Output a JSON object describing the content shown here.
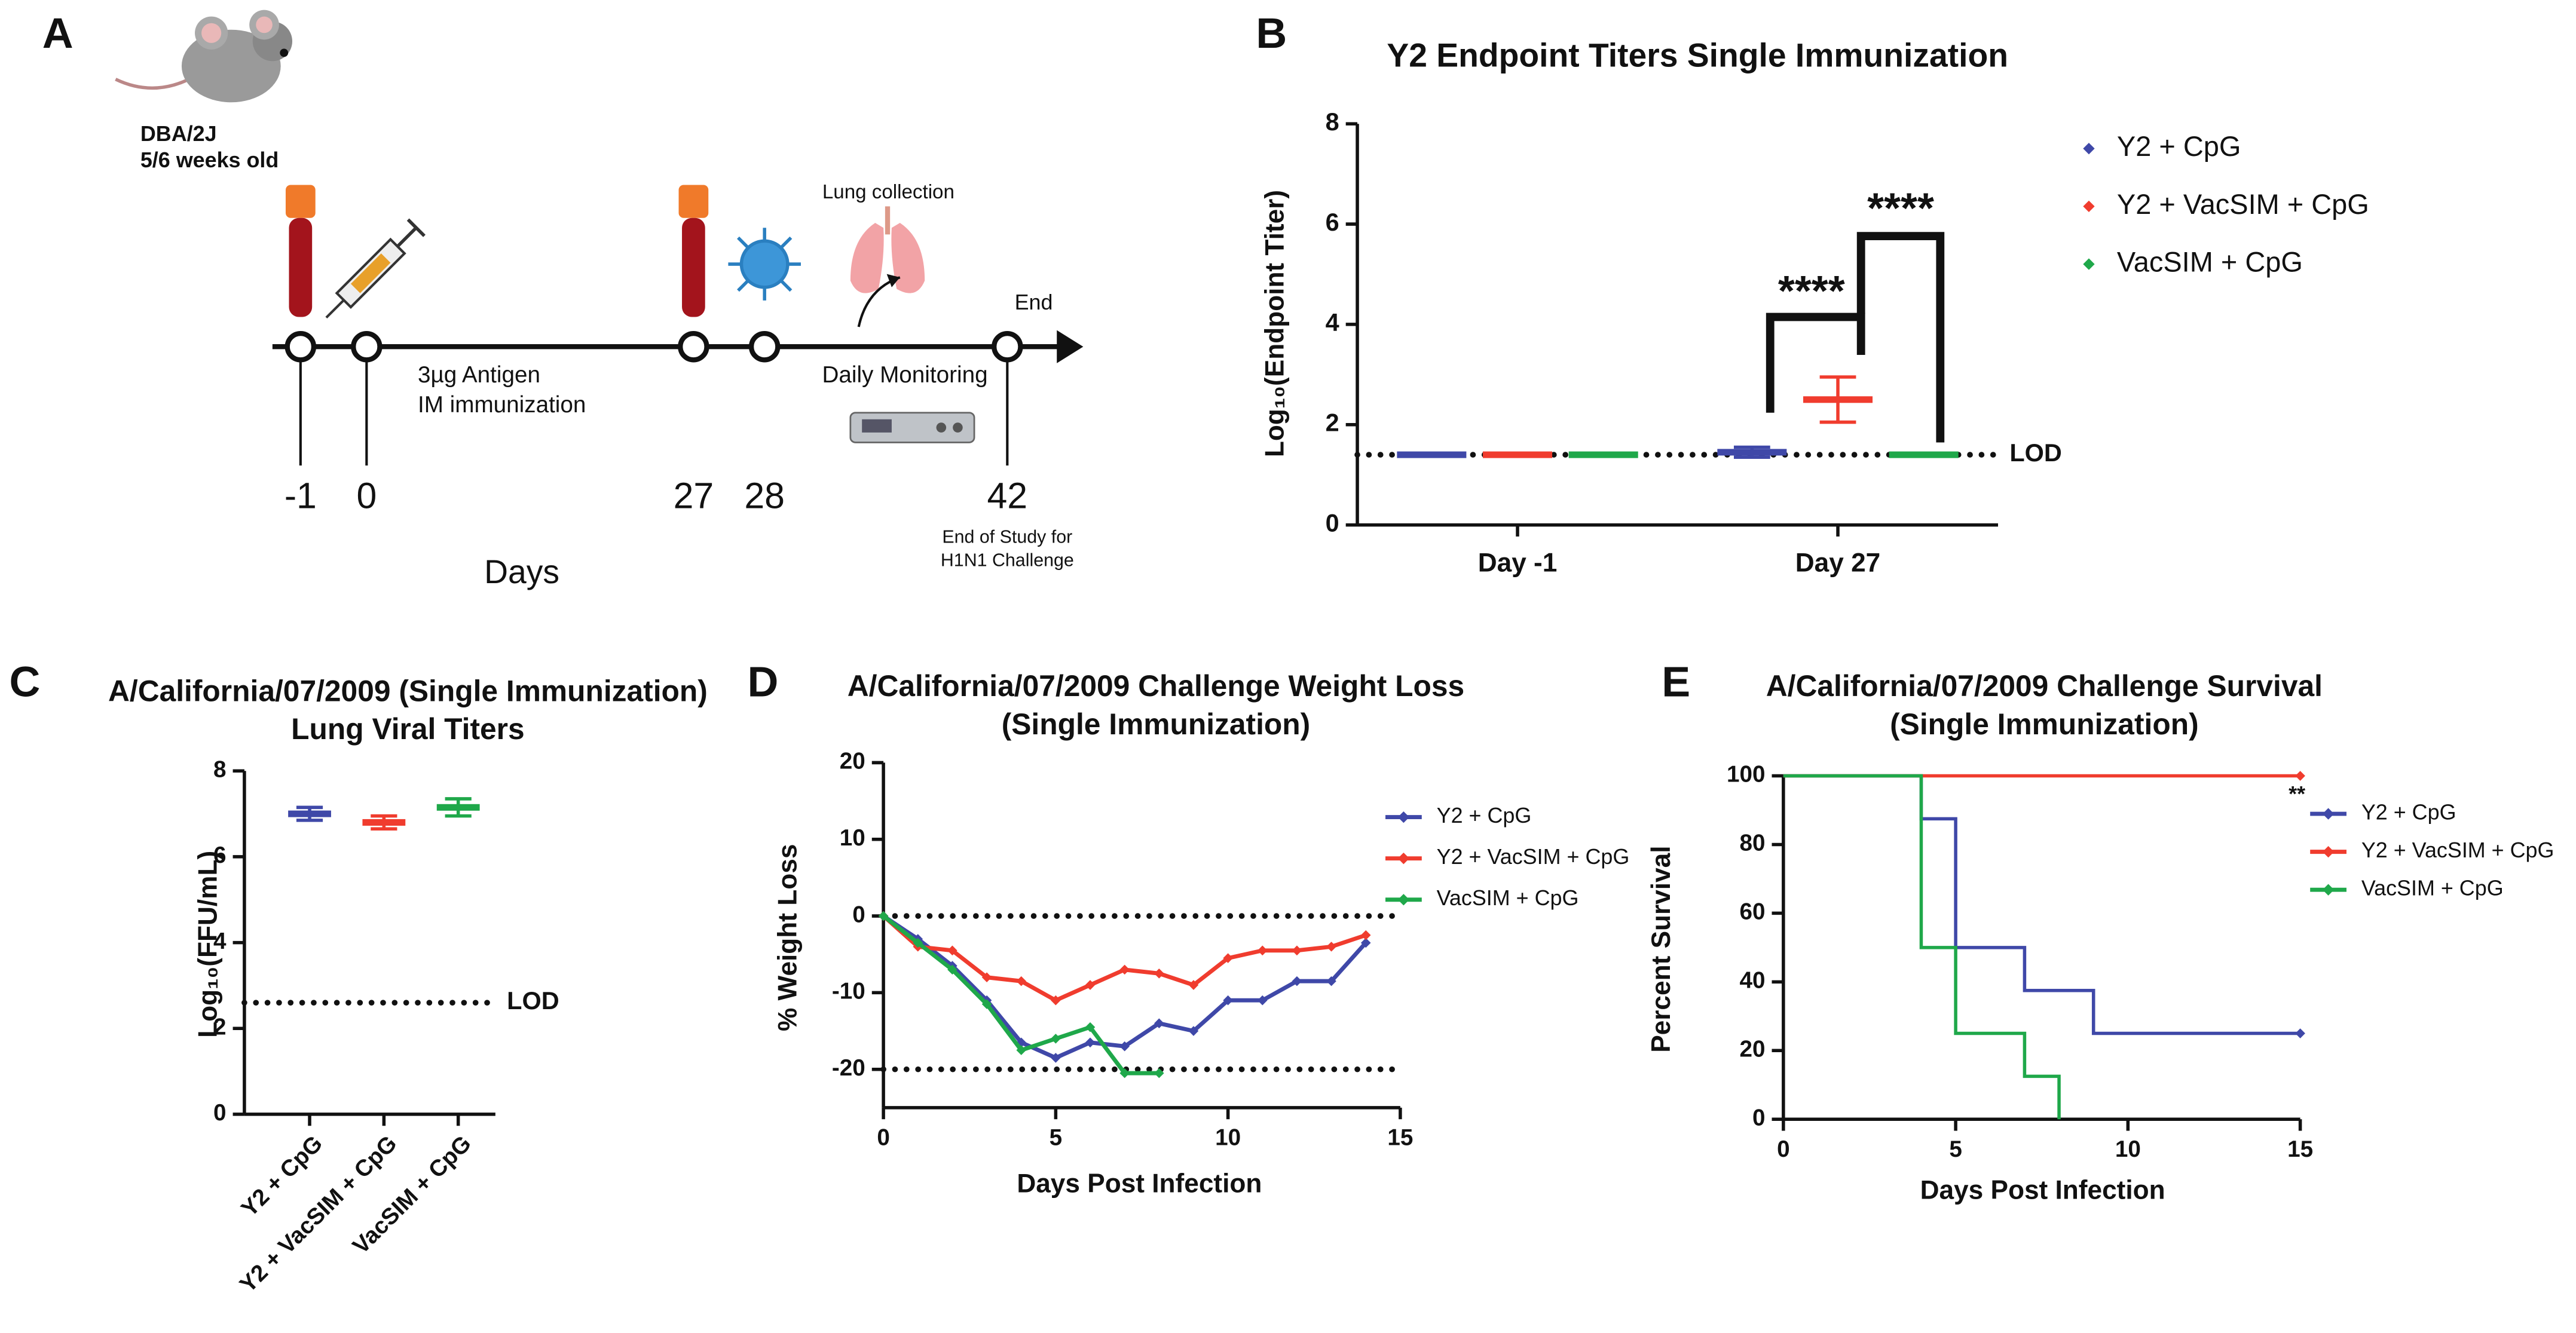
{
  "diagram": {
    "panel": "A",
    "mouse_label": [
      "DBA/2J",
      "5/6 weeks old"
    ],
    "days": [
      "-1",
      "0",
      "27",
      "28",
      "42"
    ],
    "days_label": "Days",
    "immunization": [
      "3µg Antigen",
      "IM immunization"
    ],
    "lung_collection": "Lung collection",
    "end": "End",
    "monitoring": "Daily Monitoring",
    "end_of_study": [
      "End of Study for",
      "H1N1 Challenge"
    ]
  },
  "chart_data": [
    {
      "type": "dot",
      "panel": "B",
      "title": "Y2 Endpoint Titers Single Immunization",
      "y_label": "Log₁₀(Endpoint Titer)",
      "categories": [
        "Day -1",
        "Day 27"
      ],
      "series": [
        {
          "name": "Y2 + CpG",
          "color": "#3f48a8",
          "values": [
            1.4,
            1.45
          ],
          "errors": [
            0,
            0.1
          ]
        },
        {
          "name": "Y2 + VacSIM + CpG",
          "color": "#f03c2e",
          "values": [
            1.4,
            2.5
          ],
          "errors": [
            0,
            0.45
          ]
        },
        {
          "name": "VacSIM + CpG",
          "color": "#1fa84a",
          "values": [
            1.4,
            1.4
          ],
          "errors": [
            0,
            0
          ]
        }
      ],
      "ylim": [
        0,
        8
      ],
      "yticks": [
        0,
        2,
        4,
        6,
        8
      ],
      "lod": 1.4,
      "lod_label": "LOD",
      "annotations": [
        "****",
        "****"
      ]
    },
    {
      "type": "dot",
      "panel": "C",
      "title": [
        "A/California/07/2009 (Single Immunization)",
        "Lung Viral Titers"
      ],
      "y_label": "Log₁₀(FFU/mL)",
      "categories": [
        "Y2 + CpG",
        "Y2 + VacSIM + CpG",
        "VacSIM + CpG"
      ],
      "values": [
        7.0,
        6.8,
        7.15
      ],
      "errors": [
        0.15,
        0.15,
        0.2
      ],
      "colors": [
        "#3f48a8",
        "#f03c2e",
        "#1fa84a"
      ],
      "ylim": [
        0,
        8
      ],
      "yticks": [
        0,
        2,
        4,
        6,
        8
      ],
      "lod": 2.6,
      "lod_label": "LOD"
    },
    {
      "type": "line",
      "panel": "D",
      "title": [
        "A/California/07/2009 Challenge Weight Loss",
        "(Single Immunization)"
      ],
      "x_label": "Days Post Infection",
      "y_label": "% Weight Loss",
      "x": [
        0,
        1,
        2,
        3,
        4,
        5,
        6,
        7,
        8,
        9,
        10,
        11,
        12,
        13,
        14
      ],
      "series": [
        {
          "name": "Y2 + CpG",
          "color": "#3f48a8",
          "values": [
            0,
            -3,
            -6.5,
            -11,
            -16.5,
            -18.5,
            -16.5,
            -17,
            -14,
            -15,
            -11,
            -11,
            -8.5,
            -8.5,
            -3.5
          ]
        },
        {
          "name": "Y2 + VacSIM + CpG",
          "color": "#f03c2e",
          "values": [
            0,
            -4,
            -4.5,
            -8,
            -8.5,
            -11,
            -9,
            -7,
            -7.5,
            -9,
            -5.5,
            -4.5,
            -4.5,
            -4,
            -2.5
          ]
        },
        {
          "name": "VacSIM + CpG",
          "color": "#1fa84a",
          "values": [
            0,
            -3.5,
            -7,
            -11.5,
            -17.5,
            -16,
            -14.5,
            -20.5,
            -20.5,
            null,
            null,
            null,
            null,
            null,
            null
          ]
        }
      ],
      "xlim": [
        0,
        15
      ],
      "xticks": [
        0,
        5,
        10,
        15
      ],
      "ylim": [
        -25,
        20
      ],
      "yticks": [
        -20,
        -10,
        0,
        10,
        20
      ],
      "reference_lines": [
        0,
        -20
      ]
    },
    {
      "type": "step",
      "panel": "E",
      "title": [
        "A/California/07/2009 Challenge Survival",
        "(Single Immunization)"
      ],
      "x_label": "Days Post Infection",
      "y_label": "Percent Survival",
      "series": [
        {
          "name": "Y2 + CpG",
          "color": "#3f48a8",
          "x": [
            0,
            4,
            5,
            7,
            9,
            15
          ],
          "values": [
            100,
            87.5,
            50,
            37.5,
            25,
            25
          ]
        },
        {
          "name": "Y2 + VacSIM + CpG",
          "color": "#f03c2e",
          "x": [
            0,
            15
          ],
          "values": [
            100,
            100
          ]
        },
        {
          "name": "VacSIM + CpG",
          "color": "#1fa84a",
          "x": [
            0,
            4,
            5,
            7,
            8
          ],
          "values": [
            100,
            50,
            25,
            12.5,
            0
          ]
        }
      ],
      "xlim": [
        0,
        15
      ],
      "xticks": [
        0,
        5,
        10,
        15
      ],
      "ylim": [
        0,
        100
      ],
      "yticks": [
        0,
        20,
        40,
        60,
        80,
        100
      ],
      "annotation": "**"
    }
  ]
}
